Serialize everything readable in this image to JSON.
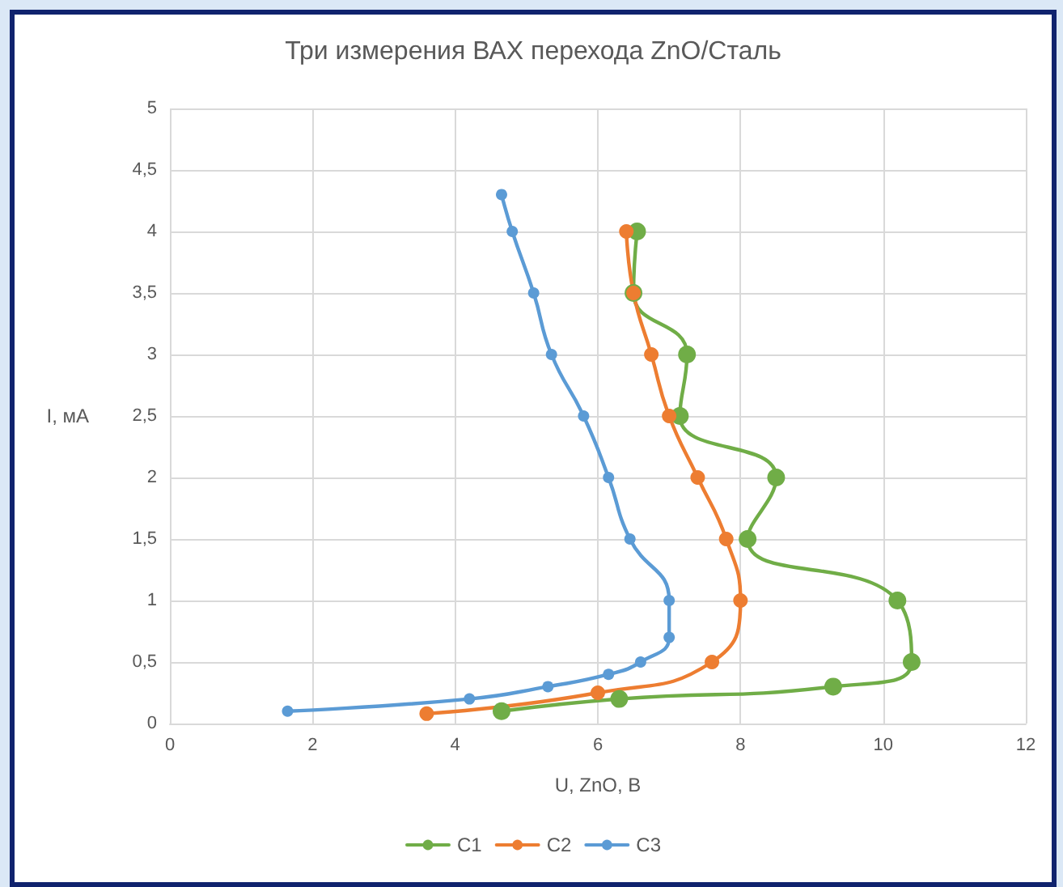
{
  "chart_data": {
    "type": "line",
    "title": "Три измерения ВАХ перехода ZnO/Сталь",
    "xlabel": "U, ZnO, B",
    "ylabel": "I, мA",
    "xlim": [
      0,
      12
    ],
    "xticks": [
      0,
      2,
      4,
      6,
      8,
      10,
      12
    ],
    "ylim": [
      0,
      5
    ],
    "yticks": [
      0,
      {
        "value": 0.5,
        "label": "0,5"
      },
      1,
      {
        "value": 1.5,
        "label": "1,5"
      },
      2,
      {
        "value": 2.5,
        "label": "2,5"
      },
      3,
      {
        "value": 3.5,
        "label": "3,5"
      },
      4,
      {
        "value": 4.5,
        "label": "4,5"
      },
      5
    ],
    "grid": true,
    "legend": "bottom",
    "marker": "circle",
    "line_style": "solid",
    "series": [
      {
        "name": "C1",
        "color": "#70ad47",
        "x": [
          4.65,
          6.3,
          9.3,
          10.4,
          10.2,
          8.1,
          8.5,
          7.15,
          7.25,
          6.5,
          6.55
        ],
        "values": [
          0.1,
          0.2,
          0.3,
          0.5,
          1,
          1.5,
          2,
          2.5,
          3,
          3.5,
          4
        ]
      },
      {
        "name": "C2",
        "color": "#ed7d31",
        "x": [
          3.6,
          6,
          7.6,
          8,
          7.8,
          7.4,
          7,
          6.75,
          6.5,
          6.4
        ],
        "values": [
          0.08,
          0.25,
          0.5,
          1,
          1.5,
          2,
          2.5,
          3,
          3.5,
          4
        ]
      },
      {
        "name": "C3",
        "color": "#5b9bd5",
        "x": [
          1.65,
          4.2,
          5.3,
          6.15,
          6.6,
          7,
          7,
          6.45,
          6.15,
          5.8,
          5.35,
          5.1,
          4.8,
          4.65
        ],
        "values": [
          0.1,
          0.2,
          0.3,
          0.4,
          0.5,
          0.7,
          1,
          1.5,
          2,
          2.5,
          3,
          3.5,
          4,
          4.3
        ]
      }
    ]
  }
}
